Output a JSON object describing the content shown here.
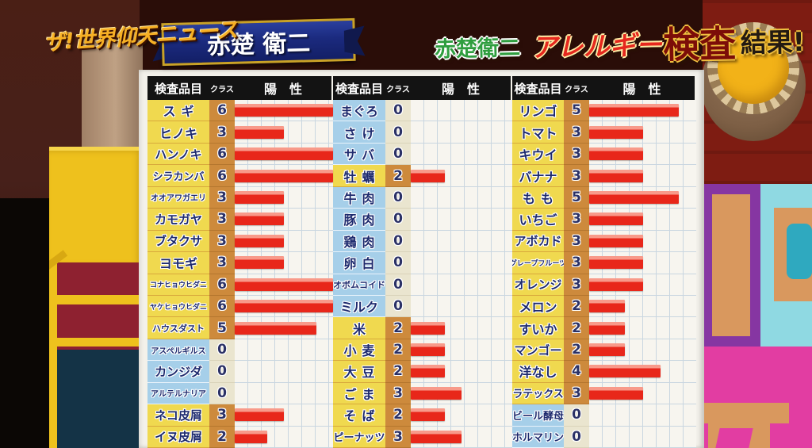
{
  "logo": {
    "text": "ザ!世界仰天ニュース"
  },
  "banner": {
    "name": "赤楚 衛二"
  },
  "headline": {
    "name": "赤楚衛二",
    "allergy": "アレルギー",
    "kensa": "検査",
    "kekka": "結果!"
  },
  "table": {
    "header_item": "検査品目",
    "header_class": "クラス",
    "header_positive": "陽　性"
  },
  "chart_data": {
    "type": "bar",
    "title": "赤楚衛二 アレルギー検査結果",
    "value_label": "クラス",
    "value_range": [
      0,
      6
    ],
    "bar_rule": "bar length = class / 6 of full column width",
    "groups": [
      {
        "items": [
          {
            "name": "スギ",
            "class": 6
          },
          {
            "name": "ヒノキ",
            "class": 3
          },
          {
            "name": "ハンノキ",
            "class": 6
          },
          {
            "name": "シラカンバ",
            "class": 6
          },
          {
            "name": "オオアワガエリ",
            "class": 3
          },
          {
            "name": "カモガヤ",
            "class": 3
          },
          {
            "name": "ブタクサ",
            "class": 3
          },
          {
            "name": "ヨモギ",
            "class": 3
          },
          {
            "name": "コナヒョウヒダニ",
            "class": 6
          },
          {
            "name": "ヤケヒョウヒダニ",
            "class": 6
          },
          {
            "name": "ハウスダスト",
            "class": 5
          },
          {
            "name": "アスペルギルス",
            "class": 0
          },
          {
            "name": "カンジダ",
            "class": 0
          },
          {
            "name": "アルテルナリア",
            "class": 0
          },
          {
            "name": "ネコ皮屑",
            "class": 3
          },
          {
            "name": "イヌ皮屑",
            "class": 2
          }
        ]
      },
      {
        "items": [
          {
            "name": "まぐろ",
            "class": 0
          },
          {
            "name": "さけ",
            "class": 0
          },
          {
            "name": "サバ",
            "class": 0
          },
          {
            "name": "牡蠣",
            "class": 2
          },
          {
            "name": "牛肉",
            "class": 0
          },
          {
            "name": "豚肉",
            "class": 0
          },
          {
            "name": "鶏肉",
            "class": 0
          },
          {
            "name": "卵白",
            "class": 0
          },
          {
            "name": "オボムコイド",
            "class": 0
          },
          {
            "name": "ミルク",
            "class": 0
          },
          {
            "name": "米",
            "class": 2
          },
          {
            "name": "小麦",
            "class": 2
          },
          {
            "name": "大豆",
            "class": 2
          },
          {
            "name": "ごま",
            "class": 3
          },
          {
            "name": "そば",
            "class": 2
          },
          {
            "name": "ピーナッツ",
            "class": 3
          }
        ]
      },
      {
        "items": [
          {
            "name": "リンゴ",
            "class": 5
          },
          {
            "name": "トマト",
            "class": 3
          },
          {
            "name": "キウイ",
            "class": 3
          },
          {
            "name": "バナナ",
            "class": 3
          },
          {
            "name": "もも",
            "class": 5
          },
          {
            "name": "いちご",
            "class": 3
          },
          {
            "name": "アボカド",
            "class": 3
          },
          {
            "name": "グレープフルーツ",
            "class": 3
          },
          {
            "name": "オレンジ",
            "class": 3
          },
          {
            "name": "メロン",
            "class": 2
          },
          {
            "name": "すいか",
            "class": 2
          },
          {
            "name": "マンゴー",
            "class": 2
          },
          {
            "name": "洋なし",
            "class": 4
          },
          {
            "name": "ラテックス",
            "class": 3
          },
          {
            "name": "ビール酵母",
            "class": 0
          },
          {
            "name": "ホルマリン",
            "class": 0
          }
        ]
      }
    ]
  },
  "colors": {
    "bar_red": "#e8271a",
    "bar_highlight": "#f89a8a",
    "label_positive_yellow": "#f0d94f",
    "label_zero_blue": "#a6cfe9",
    "class_positive_orange": "#cd8a3c",
    "class_zero_cream": "#eae5cf",
    "header_black": "#131313",
    "board_white": "#f3f1ea",
    "banner_navy": "#1b2a7e",
    "banner_gold": "#c9a227",
    "logo_gold": "#f7b024",
    "headline_green": "#2f9e3f",
    "headline_red": "#e5281e",
    "headline_dark_red": "#7c0d08"
  }
}
